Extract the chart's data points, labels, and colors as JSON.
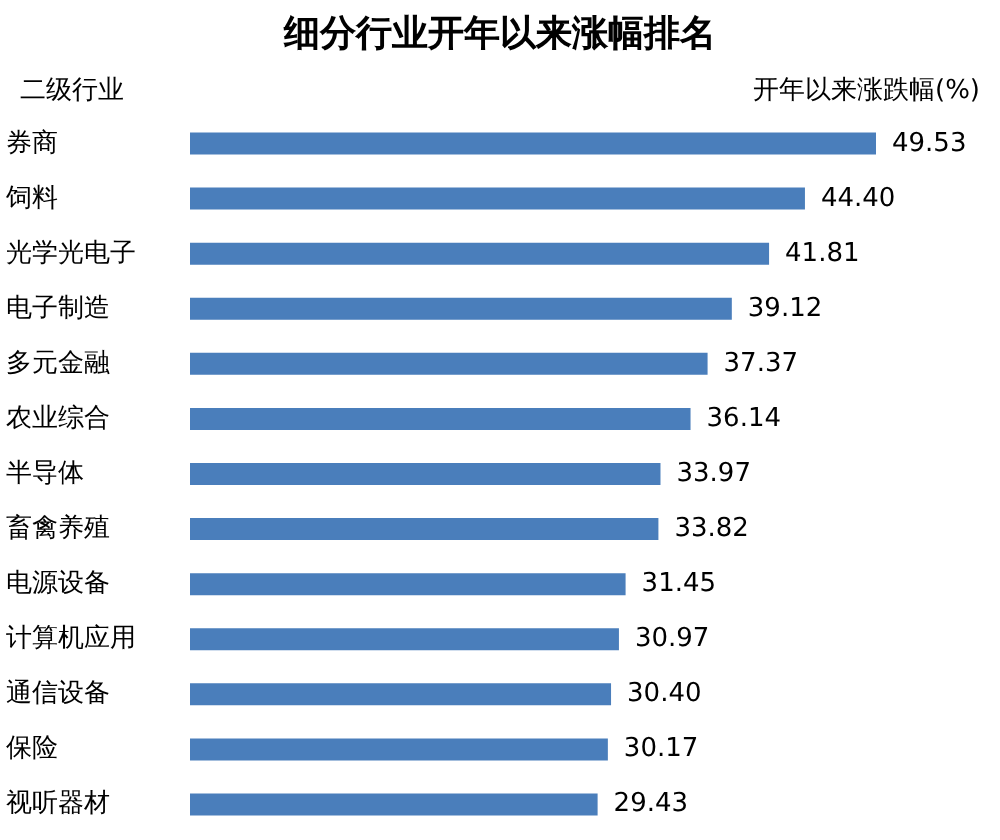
{
  "chart_data": {
    "type": "bar",
    "orientation": "horizontal",
    "title": "细分行业开年以来涨幅排名",
    "ylabel": "二级行业",
    "xlabel": "开年以来涨跌幅(%)",
    "categories": [
      "券商",
      "饲料",
      "光学光电子",
      "电子制造",
      "多元金融",
      "农业综合",
      "半导体",
      "畜禽养殖",
      "电源设备",
      "计算机应用",
      "通信设备",
      "保险",
      "视听器材"
    ],
    "values": [
      49.53,
      44.4,
      41.81,
      39.12,
      37.37,
      36.14,
      33.97,
      33.82,
      31.45,
      30.97,
      30.4,
      30.17,
      29.43
    ],
    "value_labels": [
      "49.53",
      "44.40",
      "41.81",
      "39.12",
      "37.37",
      "36.14",
      "33.97",
      "33.82",
      "31.45",
      "30.97",
      "30.40",
      "30.17",
      "29.43"
    ],
    "color": "#4a7ebb"
  }
}
